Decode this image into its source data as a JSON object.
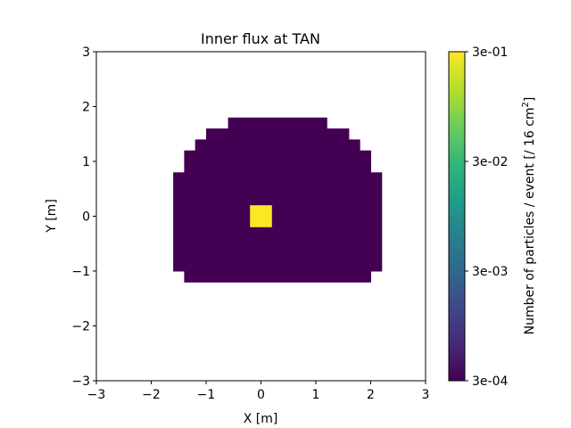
{
  "chart_data": {
    "type": "heatmap",
    "title": "Inner flux at TAN",
    "xlabel": "X [m]",
    "ylabel": "Y [m]",
    "xlim": [
      -3,
      3
    ],
    "ylim": [
      -3,
      3
    ],
    "x_ticks": [
      -3,
      -2,
      -1,
      0,
      1,
      2,
      3
    ],
    "y_ticks": [
      -3,
      -2,
      -1,
      0,
      1,
      2,
      3
    ],
    "x_tick_labels": [
      "−3",
      "−2",
      "−1",
      "0",
      "1",
      "2",
      "3"
    ],
    "y_tick_labels": [
      "−3",
      "−2",
      "−1",
      "0",
      "1",
      "2",
      "3"
    ],
    "cell_size": 0.2,
    "scale": "log",
    "background_value_note": "all non-highlighted cells at colorbar minimum",
    "rows": [
      {
        "y_low": 1.6,
        "y_high": 1.8,
        "x_low": -0.6,
        "x_high": 1.2
      },
      {
        "y_low": 1.4,
        "y_high": 1.6,
        "x_low": -1.0,
        "x_high": 1.6
      },
      {
        "y_low": 1.2,
        "y_high": 1.4,
        "x_low": -1.2,
        "x_high": 1.8
      },
      {
        "y_low": 0.8,
        "y_high": 1.2,
        "x_low": -1.4,
        "x_high": 2.0
      },
      {
        "y_low": -1.0,
        "y_high": 0.8,
        "x_low": -1.6,
        "x_high": 2.2
      },
      {
        "y_low": -1.2,
        "y_high": -1.0,
        "x_low": -1.4,
        "x_high": 2.0
      }
    ],
    "background_value": 0.0003,
    "hot_cells": [
      {
        "x_low": -0.2,
        "x_high": 0.2,
        "y_low": -0.2,
        "y_high": 0.2,
        "value": 0.3
      }
    ],
    "colorbar": {
      "label": "Number of particles / event [/ 16 cm²]",
      "label_main": "Number of particles / event [/ 16 cm",
      "label_sup": "2",
      "label_end": "]",
      "min": 0.0003,
      "max": 0.3,
      "ticks": [
        0.0003,
        0.003,
        0.03,
        0.3
      ],
      "tick_labels": [
        "3e-04",
        "3e-03",
        "3e-02",
        "3e-01"
      ],
      "colormap": "viridis",
      "colors": [
        "#440154",
        "#482878",
        "#3e4989",
        "#31688e",
        "#26828e",
        "#1f9e89",
        "#35b779",
        "#6ece58",
        "#b5de2b",
        "#fde725"
      ]
    }
  }
}
